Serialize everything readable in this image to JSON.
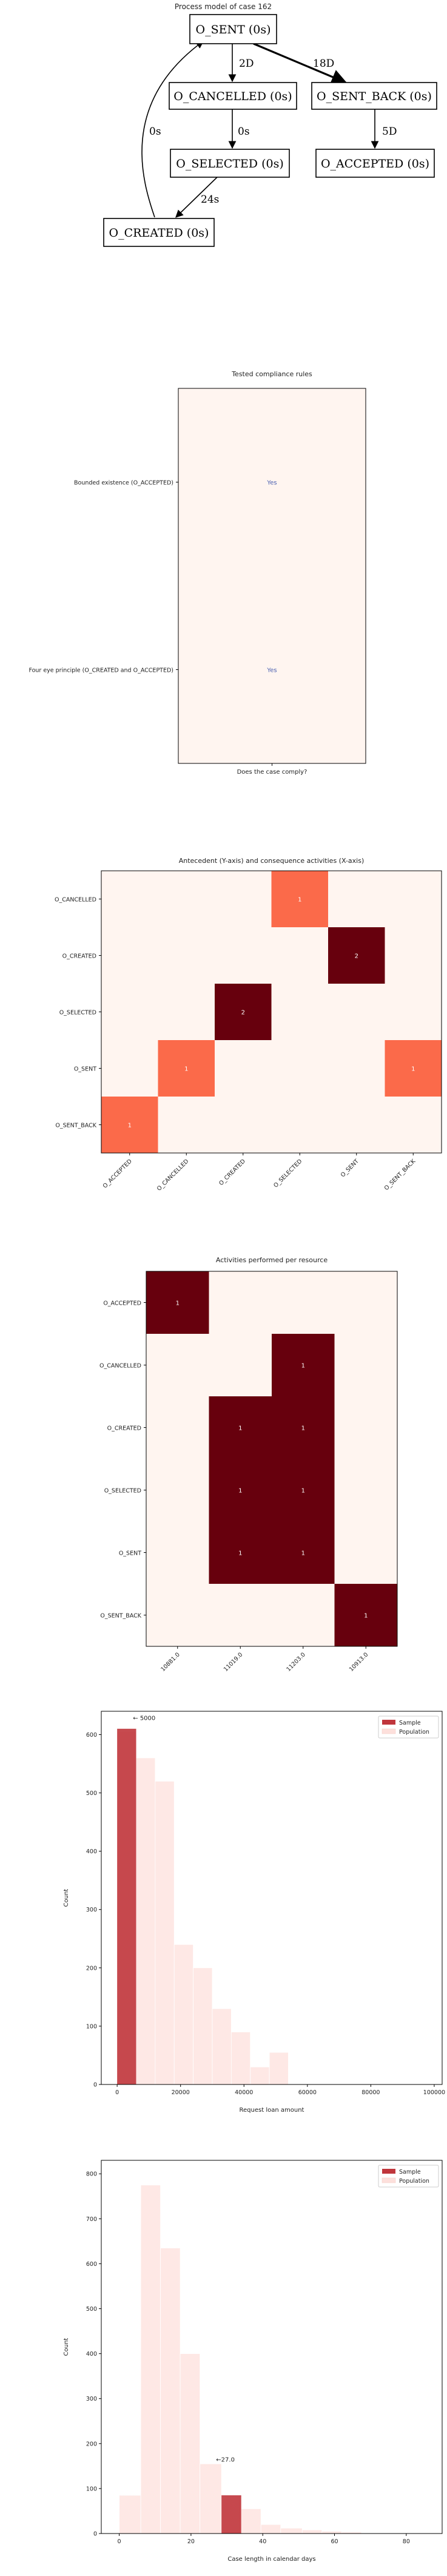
{
  "process_graph": {
    "title": "Process model of case 162",
    "nodes": [
      {
        "id": "sent",
        "label": "O_SENT (0s)"
      },
      {
        "id": "cancelled",
        "label": "O_CANCELLED (0s)"
      },
      {
        "id": "sent_back",
        "label": "O_SENT_BACK (0s)"
      },
      {
        "id": "selected",
        "label": "O_SELECTED (0s)"
      },
      {
        "id": "accepted",
        "label": "O_ACCEPTED (0s)"
      },
      {
        "id": "created",
        "label": "O_CREATED (0s)"
      }
    ],
    "edges": [
      {
        "from": "sent",
        "to": "cancelled",
        "label": "2D"
      },
      {
        "from": "sent",
        "to": "sent_back",
        "label": "18D"
      },
      {
        "from": "cancelled",
        "to": "selected",
        "label": "0s"
      },
      {
        "from": "sent_back",
        "to": "accepted",
        "label": "5D"
      },
      {
        "from": "selected",
        "to": "created",
        "label": "24s"
      },
      {
        "from": "created",
        "to": "sent",
        "label": "0s"
      }
    ]
  },
  "chart_data": [
    {
      "type": "table",
      "title": "Tested compliance rules",
      "xlabel": "Does the case comply?",
      "rows": [
        "Bounded existence (O_ACCEPTED)",
        "Four eye principle (O_CREATED and O_ACCEPTED)"
      ],
      "values": [
        "Yes",
        "Yes"
      ],
      "colors": {
        "cell": "#fff5f0",
        "text": "#4a5fb0"
      }
    },
    {
      "type": "heatmap",
      "title": "Antecedent (Y-axis) and consequence activities (X-axis)",
      "y_categories": [
        "O_CANCELLED",
        "O_CREATED",
        "O_SELECTED",
        "O_SENT",
        "O_SENT_BACK"
      ],
      "x_categories": [
        "O_ACCEPTED",
        "O_CANCELLED",
        "O_CREATED",
        "O_SELECTED",
        "O_SENT",
        "O_SENT_BACK"
      ],
      "values": [
        [
          0,
          0,
          0,
          1,
          0,
          0
        ],
        [
          0,
          0,
          0,
          0,
          2,
          0
        ],
        [
          0,
          0,
          2,
          0,
          0,
          0
        ],
        [
          0,
          1,
          0,
          0,
          0,
          1
        ],
        [
          1,
          0,
          0,
          0,
          0,
          0
        ]
      ],
      "vmax": 2,
      "colormap": "Reds"
    },
    {
      "type": "heatmap",
      "title": "Activities performed per resource",
      "y_categories": [
        "O_ACCEPTED",
        "O_CANCELLED",
        "O_CREATED",
        "O_SELECTED",
        "O_SENT",
        "O_SENT_BACK"
      ],
      "x_categories": [
        "10881.0",
        "11019.0",
        "11203.0",
        "10913.0"
      ],
      "values": [
        [
          1,
          0,
          0,
          0
        ],
        [
          0,
          0,
          1,
          0
        ],
        [
          0,
          1,
          1,
          0
        ],
        [
          0,
          1,
          1,
          0
        ],
        [
          0,
          1,
          1,
          0
        ],
        [
          0,
          0,
          0,
          1
        ]
      ],
      "vmax": 1,
      "colormap": "Reds"
    },
    {
      "type": "bar",
      "xlabel": "Request loan amount",
      "ylabel": "Count",
      "xlim": [
        -5000,
        102500
      ],
      "ylim": [
        0,
        640
      ],
      "xticks": [
        0,
        20000,
        40000,
        60000,
        80000,
        100000
      ],
      "yticks": [
        0,
        100,
        200,
        300,
        400,
        500,
        600
      ],
      "bin_width": 6000,
      "series": [
        {
          "name": "Sample",
          "color": "#c0363c",
          "bins": [
            {
              "x0": 0,
              "x1": 6000,
              "value": 610
            }
          ]
        },
        {
          "name": "Population",
          "color": "#fde0dc",
          "bins": [
            {
              "x0": 0,
              "x1": 6000,
              "value": 605
            },
            {
              "x0": 6000,
              "x1": 12000,
              "value": 560
            },
            {
              "x0": 12000,
              "x1": 18000,
              "value": 520
            },
            {
              "x0": 18000,
              "x1": 24000,
              "value": 240
            },
            {
              "x0": 24000,
              "x1": 30000,
              "value": 200
            },
            {
              "x0": 30000,
              "x1": 36000,
              "value": 130
            },
            {
              "x0": 36000,
              "x1": 42000,
              "value": 90
            },
            {
              "x0": 42000,
              "x1": 48000,
              "value": 30
            },
            {
              "x0": 48000,
              "x1": 54000,
              "value": 55
            }
          ]
        }
      ],
      "annotation": {
        "text": "← 5000",
        "x": 5000,
        "y": 625
      },
      "legend": "top-right"
    },
    {
      "type": "bar",
      "xlabel": "Case length in calendar days",
      "ylabel": "Count",
      "xlim": [
        -5,
        90
      ],
      "ylim": [
        0,
        830
      ],
      "xticks": [
        0,
        20,
        40,
        60,
        80
      ],
      "yticks": [
        0,
        100,
        200,
        300,
        400,
        500,
        600,
        700,
        800
      ],
      "series": [
        {
          "name": "Sample",
          "color": "#c0363c",
          "bins": [
            {
              "x0": 28.5,
              "x1": 34,
              "value": 85
            }
          ]
        },
        {
          "name": "Population",
          "color": "#fde0dc",
          "bins": [
            {
              "x0": 0,
              "x1": 6,
              "value": 85
            },
            {
              "x0": 6,
              "x1": 11.5,
              "value": 775
            },
            {
              "x0": 11.5,
              "x1": 17,
              "value": 635
            },
            {
              "x0": 17,
              "x1": 22.5,
              "value": 400
            },
            {
              "x0": 22.5,
              "x1": 28.5,
              "value": 155
            },
            {
              "x0": 28.5,
              "x1": 34,
              "value": 75
            },
            {
              "x0": 34,
              "x1": 39.5,
              "value": 55
            },
            {
              "x0": 39.5,
              "x1": 45,
              "value": 20
            },
            {
              "x0": 45,
              "x1": 51,
              "value": 12
            },
            {
              "x0": 51,
              "x1": 56.5,
              "value": 8
            },
            {
              "x0": 56.5,
              "x1": 62,
              "value": 5
            },
            {
              "x0": 62,
              "x1": 67.5,
              "value": 3
            }
          ]
        }
      ],
      "annotation": {
        "text": "←27.0",
        "x": 27,
        "y": 160
      },
      "legend": "top-right"
    }
  ]
}
